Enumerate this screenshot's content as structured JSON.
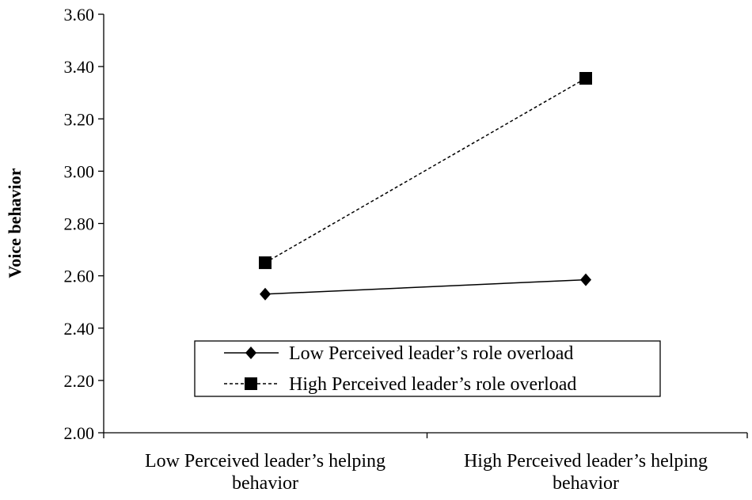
{
  "chart_data": {
    "type": "line",
    "xlabel": "",
    "ylabel": "Voice behavior",
    "ylim": [
      2.0,
      3.6
    ],
    "yticks": [
      "2.00",
      "2.20",
      "2.40",
      "2.60",
      "2.80",
      "3.00",
      "3.20",
      "3.40",
      "3.60"
    ],
    "categories": [
      [
        "Low Perceived leader’s helping",
        "behavior"
      ],
      [
        "High Perceived leader’s helping",
        "behavior"
      ]
    ],
    "series": [
      {
        "name": "Low Perceived leader’s role overload",
        "values": [
          2.53,
          2.585
        ],
        "marker": "diamond",
        "line": "solid"
      },
      {
        "name": "High Perceived leader’s role overload",
        "values": [
          2.65,
          3.355
        ],
        "marker": "square",
        "line": "dashed"
      }
    ],
    "grid": false,
    "legend": "bottom-right"
  }
}
